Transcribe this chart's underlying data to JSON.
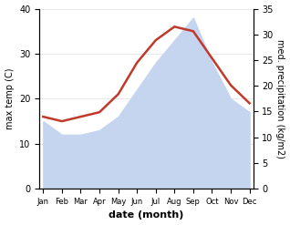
{
  "months": [
    "Jan",
    "Feb",
    "Mar",
    "Apr",
    "May",
    "Jun",
    "Jul",
    "Aug",
    "Sep",
    "Oct",
    "Nov",
    "Dec"
  ],
  "month_positions": [
    1,
    2,
    3,
    4,
    5,
    6,
    7,
    8,
    9,
    10,
    11,
    12
  ],
  "max_temp": [
    16,
    15,
    16,
    17,
    21,
    28,
    33,
    36,
    35,
    29,
    23,
    19
  ],
  "precipitation_scaled": [
    15,
    12,
    12,
    13,
    16,
    22,
    28,
    33,
    38,
    28,
    20,
    17
  ],
  "temp_ylim": [
    0,
    40
  ],
  "precip_ylim": [
    0,
    35
  ],
  "temp_color": "#c0392b",
  "precip_fill_color": "#c5d5f0",
  "xlabel": "date (month)",
  "ylabel_left": "max temp (C)",
  "ylabel_right": "med. precipitation (kg/m2)",
  "temp_yticks": [
    0,
    10,
    20,
    30,
    40
  ],
  "precip_yticks": [
    0,
    5,
    10,
    15,
    20,
    25,
    30,
    35
  ],
  "bg_color": "#ffffff",
  "grid_color": "#e0e0e0"
}
